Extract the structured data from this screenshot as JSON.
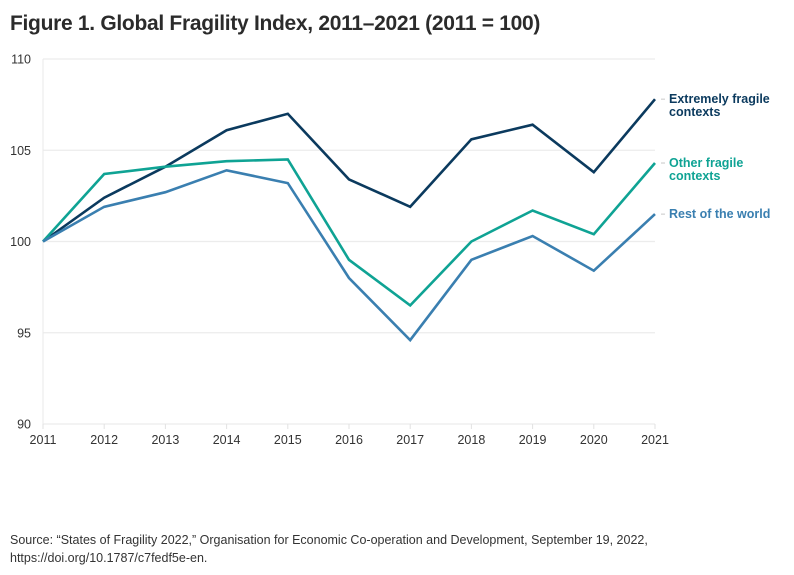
{
  "title": "Figure 1. Global Fragility Index, 2011–2021 (2011 = 100)",
  "source": {
    "line1": "Source: “States of Fragility 2022,” Organisation for Economic Co-operation and Development, September 19, 2022,",
    "line2": "https://doi.org/10.1787/c7fedf5e-en."
  },
  "chart_data": {
    "type": "line",
    "title": "Figure 1. Global Fragility Index, 2011–2021 (2011 = 100)",
    "xlabel": "",
    "ylabel": "",
    "x": [
      2011,
      2012,
      2013,
      2014,
      2015,
      2016,
      2017,
      2018,
      2019,
      2020,
      2021
    ],
    "ylim": [
      90,
      110
    ],
    "yticks": [
      90,
      95,
      100,
      105,
      110
    ],
    "xticks": [
      "2011",
      "2012",
      "2013",
      "2014",
      "2015",
      "2016",
      "2017",
      "2018",
      "2019",
      "2020",
      "2021"
    ],
    "grid": "horizontal",
    "legend": "right (direct labels at line ends)",
    "series": [
      {
        "name": "Extremely fragile contexts",
        "label_lines": [
          "Extremely fragile",
          "contexts"
        ],
        "color": "#0b3a5e",
        "values": [
          100.0,
          102.4,
          104.1,
          106.1,
          107.0,
          103.4,
          101.9,
          105.6,
          106.4,
          103.8,
          107.8
        ]
      },
      {
        "name": "Other fragile contexts",
        "label_lines": [
          "Other fragile",
          "contexts"
        ],
        "color": "#0fa394",
        "values": [
          100.0,
          103.7,
          104.1,
          104.4,
          104.5,
          99.0,
          96.5,
          100.0,
          101.7,
          100.4,
          104.3
        ]
      },
      {
        "name": "Rest of the world",
        "label_lines": [
          "Rest of the world"
        ],
        "color": "#3a7fb0",
        "values": [
          100.0,
          101.9,
          102.7,
          103.9,
          103.2,
          98.0,
          94.6,
          99.0,
          100.3,
          98.4,
          101.5
        ]
      }
    ]
  }
}
